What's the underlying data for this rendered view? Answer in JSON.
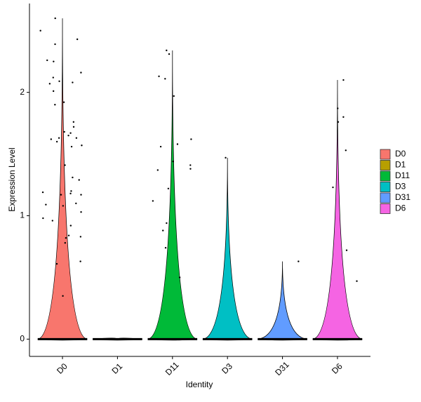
{
  "chart_data": {
    "type": "violin",
    "x_label": "Identity",
    "y_label": "Expression Level",
    "categories": [
      "D0",
      "D1",
      "D11",
      "D3",
      "D31",
      "D6"
    ],
    "ylim": [
      -0.14,
      2.72
    ],
    "yticks": [
      0,
      1,
      2
    ],
    "series": [
      {
        "name": "D0",
        "color": "#F8766D",
        "values": [
          2.5,
          2.16,
          2.12,
          2.07,
          2.08,
          1.92,
          1.9,
          1.76,
          1.72,
          1.68,
          1.67,
          1.65,
          1.63,
          1.62,
          1.6,
          1.56,
          1.2,
          1.19,
          1.18,
          1.17,
          1.17,
          1.1,
          1.09,
          1.08,
          1.03,
          0.92,
          0.84,
          0.82,
          0.83,
          0.63,
          0.61,
          2.6,
          2.43,
          2.39,
          2.26,
          2.25,
          2.09,
          2.01,
          1.57,
          1.41,
          1.31,
          1.29,
          0.98,
          0.96,
          0.78,
          0.35,
          1.63
        ]
      },
      {
        "name": "D1",
        "color": "#B79F00",
        "values": []
      },
      {
        "name": "D11",
        "color": "#00BA38",
        "values": [
          2.13,
          1.38,
          1.12,
          0.94,
          0.74,
          0.5,
          1.62,
          1.44,
          1.37,
          1.22,
          0.88,
          2.34,
          2.31,
          2.11,
          1.97,
          1.58,
          1.56,
          1.41
        ]
      },
      {
        "name": "D3",
        "color": "#00BFC4",
        "values": [
          1.47
        ]
      },
      {
        "name": "D31",
        "color": "#619CFF",
        "values": [
          0.63
        ]
      },
      {
        "name": "D6",
        "color": "#F564E3",
        "values": [
          2.1,
          1.8,
          1.76,
          1.87,
          1.53,
          0.47,
          1.23,
          0.72
        ]
      }
    ]
  }
}
